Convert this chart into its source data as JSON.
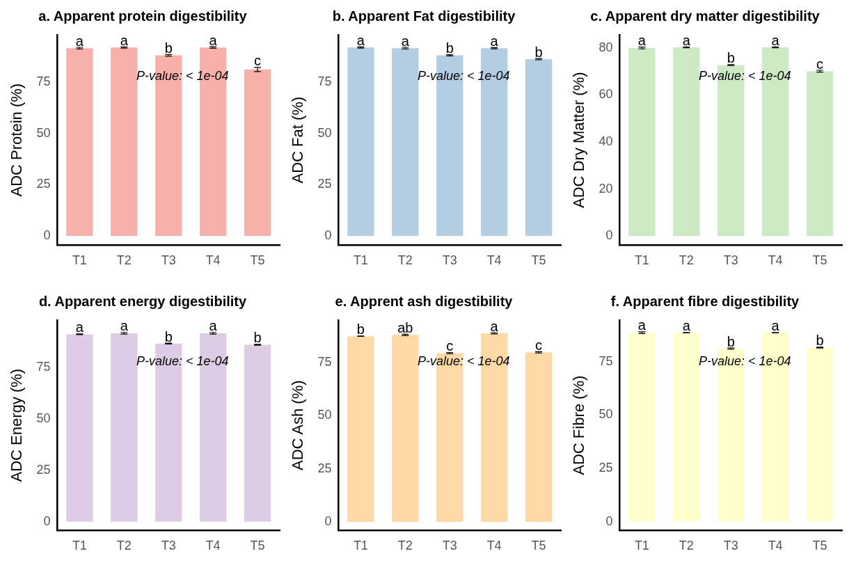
{
  "chart_data": [
    {
      "type": "bar",
      "title": "a. Apparent protein digestibility",
      "ylabel": "ADC Protein (%)",
      "categories": [
        "T1",
        "T2",
        "T3",
        "T4",
        "T5"
      ],
      "values": [
        91.5,
        91.8,
        88.0,
        91.8,
        81.1
      ],
      "errors": [
        0.4,
        0.3,
        0.4,
        0.4,
        1.0
      ],
      "value_labels": [
        "a",
        "a",
        "b",
        "a",
        "c"
      ],
      "color": "#f8b1aa",
      "ylim": [
        -4.5,
        98
      ],
      "yticks": [
        0,
        25,
        50,
        75
      ],
      "grid": false,
      "annotations": [
        "P-value: < 1e-04"
      ]
    },
    {
      "type": "bar",
      "title": "b. Apparent Fat digestibility",
      "ylabel": "ADC Fat (%)",
      "categories": [
        "T1",
        "T2",
        "T3",
        "T4",
        "T5"
      ],
      "values": [
        91.8,
        91.5,
        88.0,
        91.5,
        86.1
      ],
      "errors": [
        0.3,
        0.4,
        0.3,
        0.3,
        0.3
      ],
      "value_labels": [
        "a",
        "a",
        "b",
        "a",
        "b"
      ],
      "color": "#b3cde3",
      "ylim": [
        -4.5,
        98
      ],
      "yticks": [
        0,
        25,
        50,
        75
      ],
      "grid": false,
      "annotations": [
        "P-value: < 1e-04"
      ]
    },
    {
      "type": "bar",
      "title": "c. Apparent dry matter digestibility",
      "ylabel": "ADC Dry Matter (%)",
      "categories": [
        "T1",
        "T2",
        "T3",
        "T4",
        "T5"
      ],
      "values": [
        80.0,
        80.3,
        72.7,
        80.3,
        70.1
      ],
      "errors": [
        0.4,
        0.2,
        0.2,
        0.2,
        0.4
      ],
      "value_labels": [
        "a",
        "a",
        "b",
        "a",
        "c"
      ],
      "color": "#ccebc5",
      "ylim": [
        -3.9,
        85.6
      ],
      "yticks": [
        0,
        20,
        40,
        60,
        80
      ],
      "grid": false,
      "annotations": [
        "P-value: < 1e-04"
      ]
    },
    {
      "type": "bar",
      "title": "d. Apparent energy digestibility",
      "ylabel": "ADC Energy (%)",
      "categories": [
        "T1",
        "T2",
        "T3",
        "T4",
        "T5"
      ],
      "values": [
        91.1,
        91.6,
        86.6,
        91.6,
        86.0
      ],
      "errors": [
        0.2,
        0.4,
        0.2,
        0.4,
        0.2
      ],
      "value_labels": [
        "a",
        "a",
        "b",
        "a",
        "b"
      ],
      "color": "#decbe4",
      "ylim": [
        -4.3,
        98
      ],
      "yticks": [
        0,
        25,
        50,
        75
      ],
      "grid": false,
      "annotations": [
        "P-value: < 1e-04"
      ]
    },
    {
      "type": "bar",
      "title": "e. Apprent ash digestibility",
      "ylabel": "ADC Ash (%)",
      "categories": [
        "T1",
        "T2",
        "T3",
        "T4",
        "T5"
      ],
      "values": [
        87.4,
        88.0,
        79.4,
        88.8,
        79.8
      ],
      "errors": [
        0.1,
        0.3,
        0.3,
        0.3,
        0.3
      ],
      "value_labels": [
        "b",
        "ab",
        "c",
        "a",
        "c"
      ],
      "color": "#fed9a6",
      "ylim": [
        -4.1,
        95
      ],
      "yticks": [
        0,
        25,
        50,
        75
      ],
      "grid": false,
      "annotations": [
        "P-value: < 1e-04"
      ]
    },
    {
      "type": "bar",
      "title": "f. Apparent fibre digestibility",
      "ylabel": "ADC Fibre (%)",
      "categories": [
        "T1",
        "T2",
        "T3",
        "T4",
        "T5"
      ],
      "values": [
        88.6,
        88.6,
        81.1,
        88.6,
        81.6
      ],
      "errors": [
        0.4,
        0.1,
        0.3,
        0.1,
        0.2
      ],
      "value_labels": [
        "a",
        "a",
        "b",
        "a",
        "b"
      ],
      "color": "#ffffcc",
      "ylim": [
        -4.1,
        94.5
      ],
      "yticks": [
        0,
        25,
        50,
        75
      ],
      "grid": false,
      "annotations": [
        "P-value: < 1e-04"
      ]
    }
  ]
}
